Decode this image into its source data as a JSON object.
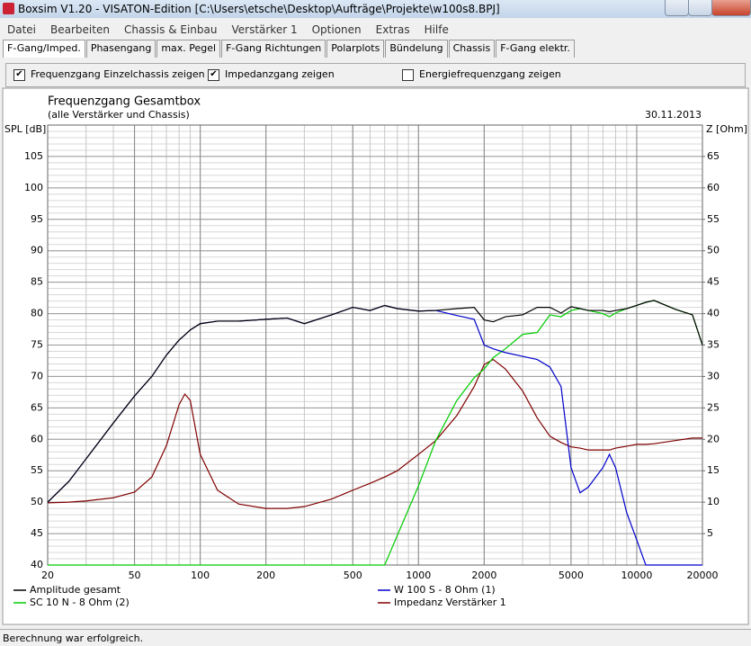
{
  "window": {
    "title": "Boxsim V1.20 - VISATON-Edition [C:\\Users\\etsche\\Desktop\\Aufträge\\Projekte\\w100s8.BPJ]"
  },
  "menu": [
    "Datei",
    "Bearbeiten",
    "Chassis & Einbau",
    "Verstärker 1",
    "Optionen",
    "Extras",
    "Hilfe"
  ],
  "tabs": [
    "F-Gang/Imped.",
    "Phasengang",
    "max. Pegel",
    "F-Gang Richtungen",
    "Polarplots",
    "Bündelung",
    "Chassis",
    "F-Gang elektr."
  ],
  "checkboxes": [
    {
      "label": "Frequenzgang Einzelchassis zeigen",
      "checked": true
    },
    {
      "label": "Impedanzgang zeigen",
      "checked": true
    },
    {
      "label": "Energiefrequenzgang zeigen",
      "checked": false
    }
  ],
  "status": "Berechnung war erfolgreich.",
  "chart_data": {
    "type": "line",
    "title": "Frequenzgang Gesamtbox",
    "subtitle": "(alle Verstärker und Chassis)",
    "date": "30.11.2013",
    "y_label": "SPL [dB]",
    "y2_label": "Z [Ohm]",
    "x_scale": "log",
    "grid": true,
    "x": [
      20,
      25,
      30,
      40,
      50,
      60,
      70,
      80,
      85,
      90,
      100,
      120,
      150,
      200,
      250,
      300,
      400,
      500,
      600,
      700,
      800,
      1000,
      1200,
      1500,
      1800,
      2000,
      2200,
      2500,
      3000,
      3500,
      4000,
      4500,
      5000,
      5500,
      6000,
      7000,
      7500,
      8000,
      9000,
      10000,
      11000,
      12000,
      15000,
      18000,
      20000
    ],
    "xlim": [
      20,
      20000
    ],
    "xticks": [
      20,
      50,
      100,
      200,
      500,
      1000,
      2000,
      5000,
      10000,
      20000
    ],
    "ylim": [
      40,
      110
    ],
    "yticks": [
      40,
      45,
      50,
      55,
      60,
      65,
      70,
      75,
      80,
      85,
      90,
      95,
      100,
      105
    ],
    "y2lim": [
      0,
      70
    ],
    "y2ticks": [
      5,
      10,
      15,
      20,
      25,
      30,
      35,
      40,
      45,
      50,
      55,
      60,
      65
    ],
    "series": [
      {
        "name": "Amplitude gesamt",
        "color": "#000000",
        "values": [
          50,
          53.3,
          56.9,
          62.6,
          66.9,
          70,
          73.4,
          75.8,
          76.6,
          77.4,
          78.4,
          78.8,
          78.8,
          79.1,
          79.3,
          78.4,
          79.8,
          81,
          80.5,
          81.3,
          80.8,
          80.4,
          80.5,
          80.8,
          81,
          79,
          78.7,
          79.5,
          79.8,
          81,
          81,
          80.1,
          81.1,
          80.8,
          80.5,
          80.5,
          80.3,
          80.5,
          80.8,
          81.3,
          81.8,
          82.1,
          80.7,
          79.8,
          75
        ]
      },
      {
        "name": "SC 10 N - 8 Ohm (2)",
        "color": "#00cc00",
        "values": [
          40,
          40,
          40,
          40,
          40,
          40,
          40,
          40,
          40,
          40,
          40,
          40,
          40,
          40,
          40,
          40,
          40,
          40,
          40,
          40,
          44.7,
          52.6,
          59.8,
          66.2,
          69.8,
          71.2,
          73,
          74.4,
          76.7,
          77,
          79.8,
          79.5,
          80.5,
          80.8,
          80.5,
          80,
          79.5,
          80.1,
          80.8,
          81.3,
          81.8,
          82.1,
          80.7,
          79.8,
          75
        ]
      },
      {
        "name": "W 100 S - 8 Ohm (1)",
        "color": "#0000cc",
        "values": [
          50,
          53.3,
          56.9,
          62.6,
          66.9,
          70,
          73.4,
          75.8,
          76.6,
          77.4,
          78.4,
          78.8,
          78.8,
          79.1,
          79.3,
          78.4,
          79.8,
          81,
          80.5,
          81.3,
          80.8,
          80.4,
          80.5,
          79.7,
          79.1,
          75,
          74.4,
          73.8,
          73.2,
          72.7,
          71.5,
          68.4,
          55.5,
          51.5,
          52.4,
          55.5,
          57.6,
          55.5,
          48.3,
          44,
          40,
          40,
          40,
          40,
          40
        ]
      },
      {
        "name": "Impedanz Verstärker 1",
        "color": "#800000",
        "axis": "y2",
        "values": [
          9.9,
          10,
          10.2,
          10.7,
          11.6,
          14,
          19,
          25.5,
          27.2,
          26.2,
          17.6,
          11.9,
          9.7,
          9,
          9,
          9.3,
          10.5,
          11.9,
          13,
          14,
          15,
          17.6,
          19.8,
          23.8,
          28.4,
          31.9,
          32.7,
          31.2,
          27.7,
          23.4,
          20.5,
          19.5,
          18.8,
          18.6,
          18.3,
          18.3,
          18.3,
          18.6,
          18.9,
          19.2,
          19.2,
          19.3,
          19.8,
          20.2,
          20.2
        ]
      }
    ]
  }
}
